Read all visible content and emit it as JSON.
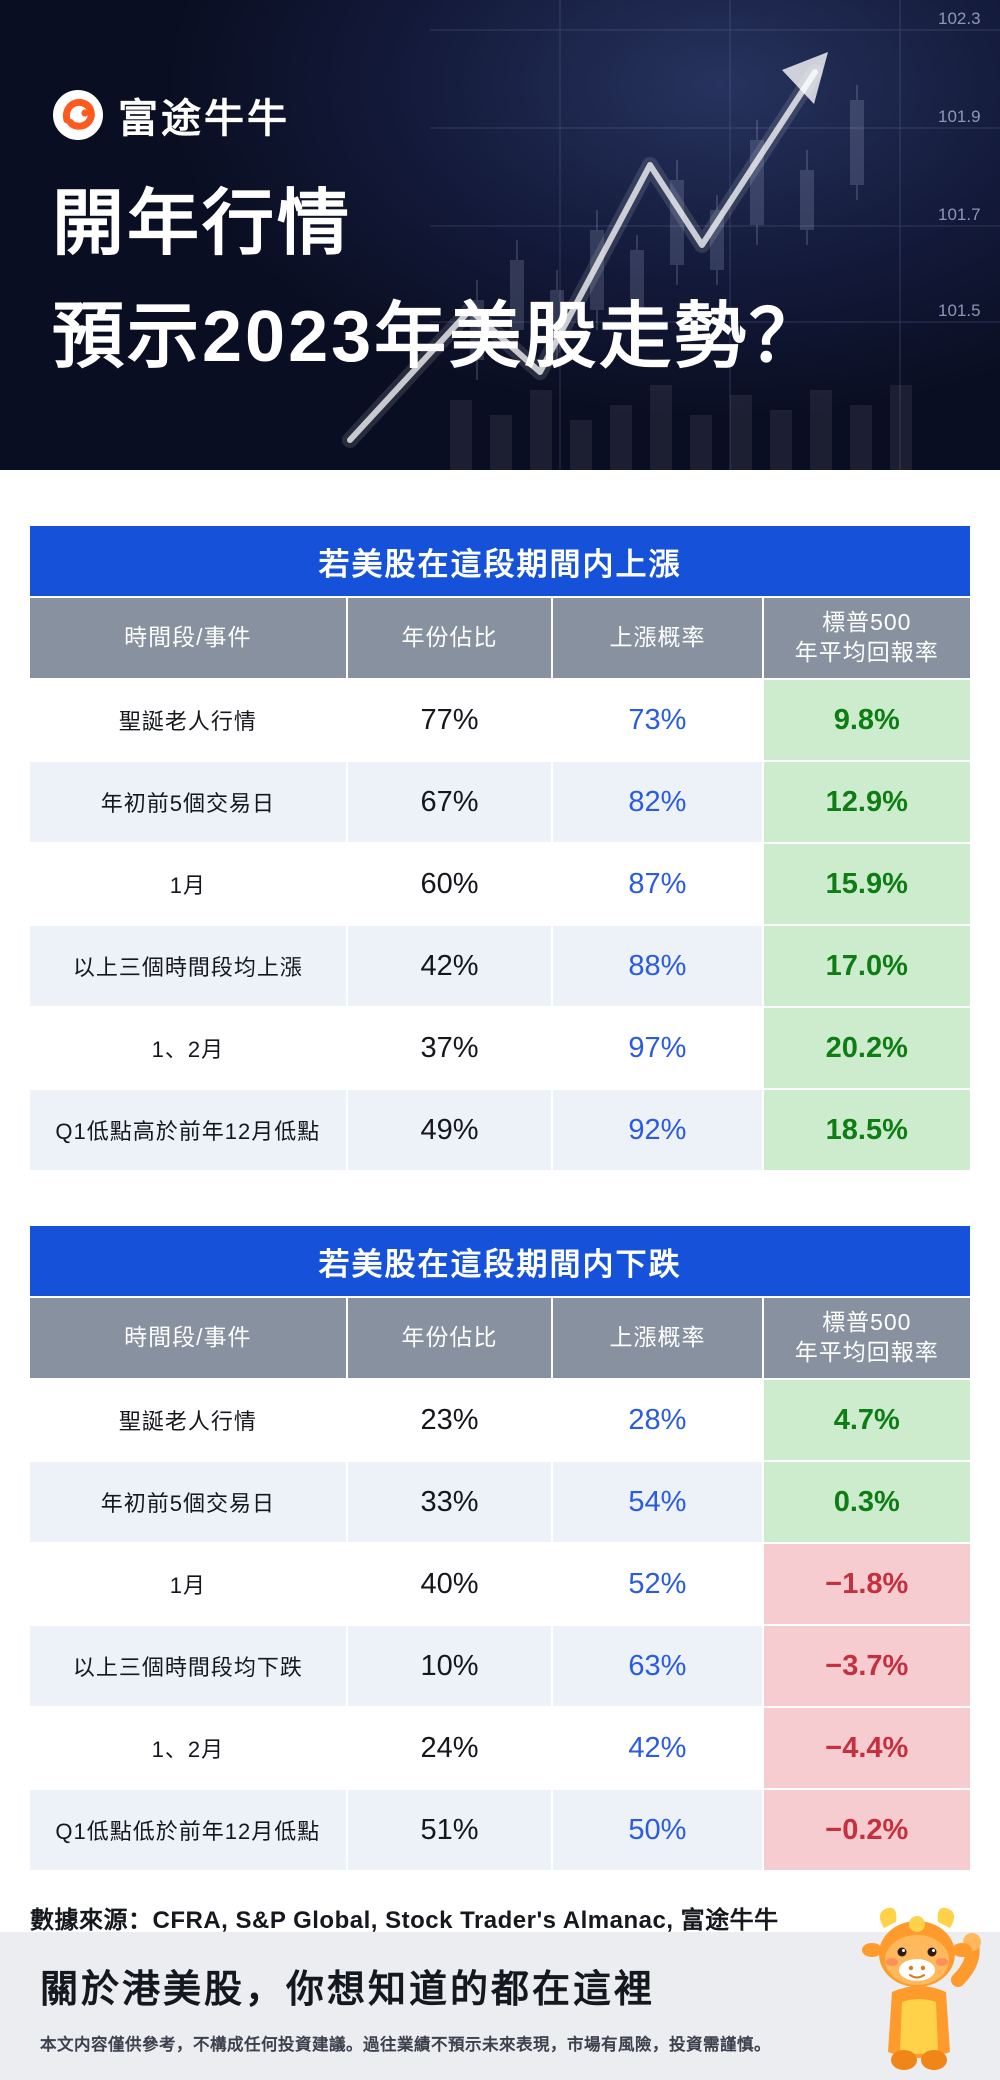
{
  "meta": {
    "colors": {
      "hero_bg": "#0a0e22",
      "table_title_bg": "#1652d9",
      "column_header_bg": "#87919f",
      "row_alt_bg": "#edf1f8",
      "green_cell_bg": "#cdeccd",
      "green_text": "#0e7d14",
      "pink_cell_bg": "#f6ccd1",
      "red_text": "#c5303e",
      "probability_blue": "#2a5be0",
      "brand_orange": "#ff5a1e"
    }
  },
  "hero": {
    "brand": "富途牛牛",
    "title_line1": "開年行情",
    "title_line2": "預示2023年美股走勢？",
    "chart_labels": [
      "102.3",
      "101.9",
      "101.7",
      "101.5"
    ]
  },
  "chart_data": [
    {
      "type": "table",
      "title": "若美股在這段期間内上漲",
      "columns": [
        "時間段/事件",
        "年份佔比",
        "上漲概率",
        "標普500\n年平均回報率"
      ],
      "rows": [
        {
          "event": "聖誕老人行情",
          "share": "77%",
          "prob": "73%",
          "ret": "9.8%",
          "ret_style": "green"
        },
        {
          "event": "年初前5個交易日",
          "share": "67%",
          "prob": "82%",
          "ret": "12.9%",
          "ret_style": "green"
        },
        {
          "event": "1月",
          "share": "60%",
          "prob": "87%",
          "ret": "15.9%",
          "ret_style": "green"
        },
        {
          "event": "以上三個時間段均上漲",
          "share": "42%",
          "prob": "88%",
          "ret": "17.0%",
          "ret_style": "green"
        },
        {
          "event": "1、2月",
          "share": "37%",
          "prob": "97%",
          "ret": "20.2%",
          "ret_style": "green"
        },
        {
          "event": "Q1低點高於前年12月低點",
          "share": "49%",
          "prob": "92%",
          "ret": "18.5%",
          "ret_style": "green"
        }
      ]
    },
    {
      "type": "table",
      "title": "若美股在這段期間内下跌",
      "columns": [
        "時間段/事件",
        "年份佔比",
        "上漲概率",
        "標普500\n年平均回報率"
      ],
      "rows": [
        {
          "event": "聖誕老人行情",
          "share": "23%",
          "prob": "28%",
          "ret": "4.7%",
          "ret_style": "green"
        },
        {
          "event": "年初前5個交易日",
          "share": "33%",
          "prob": "54%",
          "ret": "0.3%",
          "ret_style": "green"
        },
        {
          "event": "1月",
          "share": "40%",
          "prob": "52%",
          "ret": "−1.8%",
          "ret_style": "red"
        },
        {
          "event": "以上三個時間段均下跌",
          "share": "10%",
          "prob": "63%",
          "ret": "−3.7%",
          "ret_style": "red"
        },
        {
          "event": "1、2月",
          "share": "24%",
          "prob": "42%",
          "ret": "−4.4%",
          "ret_style": "red"
        },
        {
          "event": "Q1低點低於前年12月低點",
          "share": "51%",
          "prob": "50%",
          "ret": "−0.2%",
          "ret_style": "red"
        }
      ]
    }
  ],
  "source": "數據來源：CFRA, S&P Global, Stock Trader's Almanac, 富途牛牛",
  "footer": {
    "headline": "關於港美股，你想知道的都在這裡",
    "disclaimer": "本文内容僅供參考，不構成任何投資建議。過往業績不預示未來表現，市場有風險，投資需謹慎。"
  }
}
